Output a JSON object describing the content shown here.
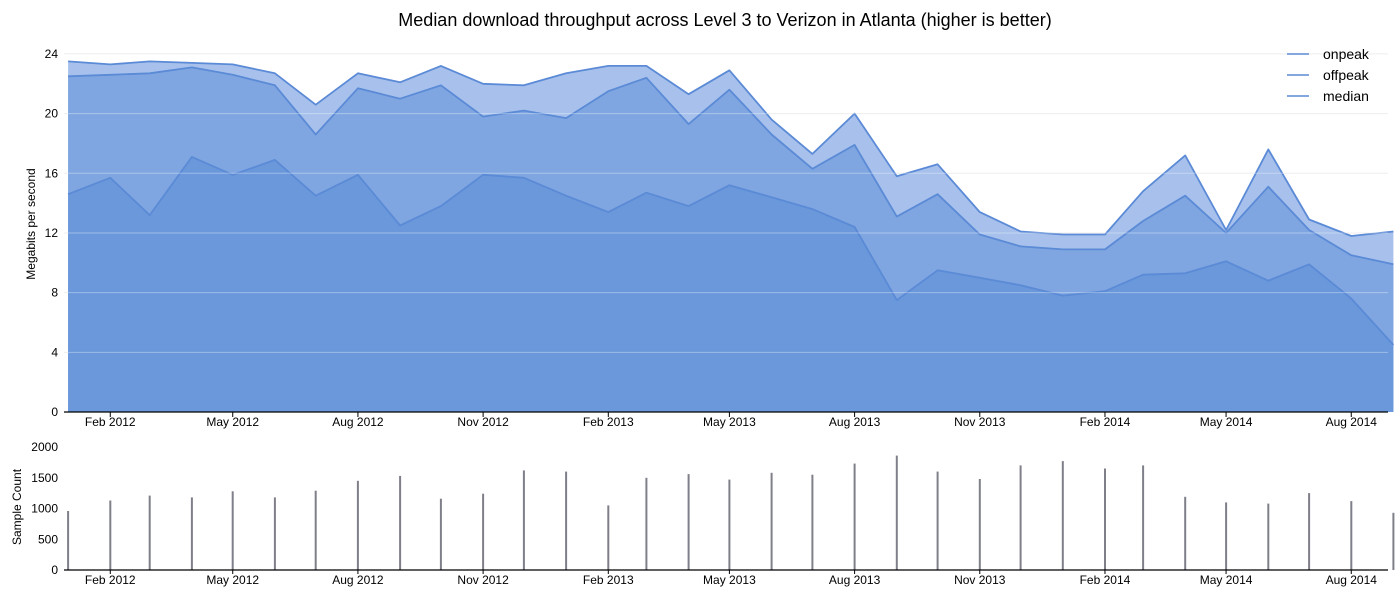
{
  "chart_data": [
    {
      "type": "area",
      "title": "Median download throughput across Level 3 to Verizon in Atlanta (higher is better)",
      "ylabel": "Megabits per second",
      "ylim": [
        0,
        24.8
      ],
      "yticks": [
        "0",
        "4",
        "8",
        "12",
        "16",
        "20",
        "24"
      ],
      "xlim": [
        "2011-12-29",
        "2014-08-28"
      ],
      "xticks": [
        "2012-02-01",
        "2012-05-01",
        "2012-08-01",
        "2012-11-01",
        "2013-02-01",
        "2013-05-01",
        "2013-08-01",
        "2013-11-01",
        "2014-02-01",
        "2014-05-01",
        "2014-08-01"
      ],
      "xtick_labels": [
        "Feb 2012",
        "May 2012",
        "Aug 2012",
        "Nov 2012",
        "Feb 2013",
        "May 2013",
        "Aug 2013",
        "Nov 2013",
        "Feb 2014",
        "May 2014",
        "Aug 2014"
      ],
      "grid": true,
      "legend": "top-right",
      "colors": {
        "onpeak": "#a7c1ec",
        "offpeak": "#7fa6e0",
        "median": "#6a98db",
        "line": "#5b8ad6"
      },
      "x": [
        "2012-01-01",
        "2012-02-01",
        "2012-03-01",
        "2012-04-01",
        "2012-05-01",
        "2012-06-01",
        "2012-07-01",
        "2012-08-01",
        "2012-09-01",
        "2012-10-01",
        "2012-11-01",
        "2012-12-01",
        "2013-01-01",
        "2013-02-01",
        "2013-03-01",
        "2013-04-01",
        "2013-05-01",
        "2013-06-01",
        "2013-07-01",
        "2013-08-01",
        "2013-09-01",
        "2013-10-01",
        "2013-11-01",
        "2013-12-01",
        "2014-01-01",
        "2014-02-01",
        "2014-03-01",
        "2014-04-01",
        "2014-05-01",
        "2014-06-01",
        "2014-07-01",
        "2014-08-01",
        "2014-09-01"
      ],
      "series": [
        {
          "name": "onpeak",
          "values": [
            23.5,
            23.3,
            23.5,
            23.4,
            23.3,
            22.7,
            20.6,
            22.7,
            22.1,
            23.2,
            22.0,
            21.9,
            22.7,
            23.2,
            23.2,
            21.3,
            22.9,
            19.6,
            17.3,
            20.0,
            15.8,
            16.6,
            13.4,
            12.1,
            11.9,
            11.9,
            14.8,
            17.2,
            12.2,
            17.6,
            12.9,
            11.8,
            12.1
          ]
        },
        {
          "name": "offpeak",
          "values": [
            22.5,
            22.6,
            22.7,
            23.1,
            22.6,
            21.9,
            18.6,
            21.7,
            21.0,
            21.9,
            19.8,
            20.2,
            19.7,
            21.5,
            22.4,
            19.3,
            21.6,
            18.6,
            16.3,
            17.9,
            13.1,
            14.6,
            11.9,
            11.1,
            10.9,
            10.9,
            12.8,
            14.5,
            12.0,
            15.1,
            12.2,
            10.5,
            9.9
          ]
        },
        {
          "name": "median",
          "values": [
            14.6,
            15.7,
            13.2,
            17.1,
            15.9,
            16.9,
            14.5,
            15.9,
            12.5,
            13.8,
            15.9,
            15.7,
            14.5,
            13.4,
            14.7,
            13.8,
            15.2,
            14.4,
            13.6,
            12.4,
            7.5,
            9.5,
            9.0,
            8.5,
            7.8,
            8.1,
            9.2,
            9.3,
            10.1,
            8.8,
            9.9,
            7.6,
            4.5
          ]
        }
      ]
    },
    {
      "type": "bar",
      "ylabel": "Sample Count",
      "ylim": [
        0,
        2000
      ],
      "yticks": [
        "0",
        "500",
        "1000",
        "1500",
        "2000"
      ],
      "xlim": [
        "2011-12-29",
        "2014-08-28"
      ],
      "xticks": [
        "2012-02-01",
        "2012-05-01",
        "2012-08-01",
        "2012-11-01",
        "2013-02-01",
        "2013-05-01",
        "2013-08-01",
        "2013-11-01",
        "2014-02-01",
        "2014-05-01",
        "2014-08-01"
      ],
      "xtick_labels": [
        "Feb 2012",
        "May 2012",
        "Aug 2012",
        "Nov 2012",
        "Feb 2013",
        "May 2013",
        "Aug 2013",
        "Nov 2013",
        "Feb 2014",
        "May 2014",
        "Aug 2014"
      ],
      "colors": {
        "bar": "#7f7f8a"
      },
      "x": [
        "2012-01-01",
        "2012-02-01",
        "2012-03-01",
        "2012-04-01",
        "2012-05-01",
        "2012-06-01",
        "2012-07-01",
        "2012-08-01",
        "2012-09-01",
        "2012-10-01",
        "2012-11-01",
        "2012-12-01",
        "2013-01-01",
        "2013-02-01",
        "2013-03-01",
        "2013-04-01",
        "2013-05-01",
        "2013-06-01",
        "2013-07-01",
        "2013-08-01",
        "2013-09-01",
        "2013-10-01",
        "2013-11-01",
        "2013-12-01",
        "2014-01-01",
        "2014-02-01",
        "2014-03-01",
        "2014-04-01",
        "2014-05-01",
        "2014-06-01",
        "2014-07-01",
        "2014-08-01",
        "2014-09-01"
      ],
      "values": [
        960,
        1130,
        1210,
        1180,
        1280,
        1180,
        1290,
        1450,
        1530,
        1160,
        1240,
        1620,
        1600,
        1050,
        1500,
        1560,
        1470,
        1580,
        1550,
        1730,
        1860,
        1600,
        1480,
        1700,
        1770,
        1650,
        1700,
        1190,
        1100,
        1080,
        1250,
        1120,
        930
      ]
    }
  ]
}
